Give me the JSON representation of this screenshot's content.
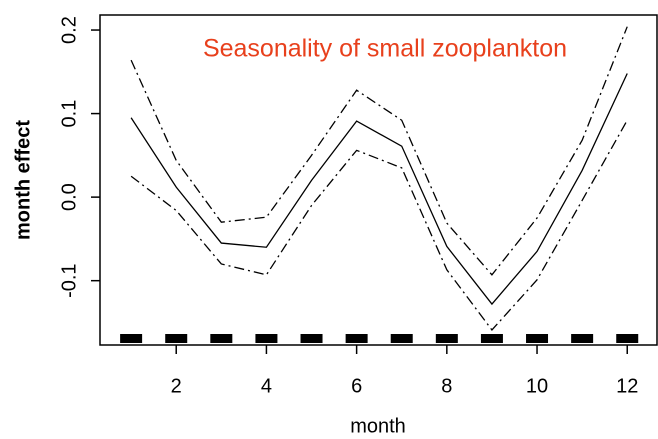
{
  "chart_data": {
    "type": "line",
    "title": "Seasonality of small zooplankton",
    "title_color": "#e8401c",
    "xlabel": "month",
    "ylabel": "month effect",
    "x": [
      1,
      2,
      3,
      4,
      5,
      6,
      7,
      8,
      9,
      10,
      11,
      12
    ],
    "series": [
      {
        "color": "#000000",
        "style": "solid",
        "values": [
          0.095,
          0.012,
          -0.055,
          -0.06,
          0.02,
          0.091,
          0.061,
          -0.059,
          -0.128,
          -0.065,
          0.032,
          0.148
        ]
      },
      {
        "color": "#000000",
        "style": "dashdot",
        "values": [
          0.164,
          0.044,
          -0.03,
          -0.024,
          0.05,
          0.128,
          0.092,
          -0.031,
          -0.093,
          -0.025,
          0.068,
          0.204
        ]
      },
      {
        "color": "#000000",
        "style": "dashdot",
        "values": [
          0.025,
          -0.016,
          -0.08,
          -0.093,
          -0.01,
          0.056,
          0.035,
          -0.087,
          -0.159,
          -0.099,
          -0.004,
          0.092
        ]
      }
    ],
    "rug": true,
    "xlim": [
      0.31,
      12.66
    ],
    "ylim": [
      -0.177,
      0.218
    ],
    "xticks": [
      2,
      4,
      6,
      8,
      10,
      12
    ],
    "yticks": [
      -0.1,
      {
        "value": 0,
        "label": "0.0"
      },
      0.1,
      0.2
    ]
  }
}
